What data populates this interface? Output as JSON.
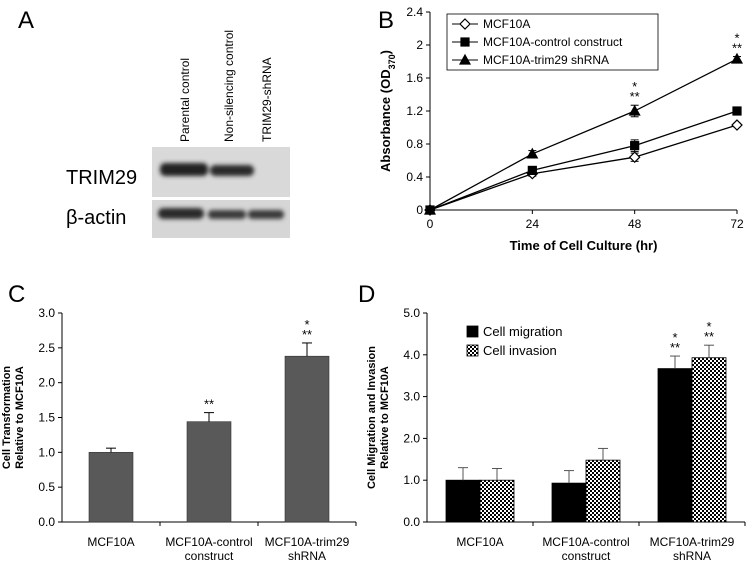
{
  "blot": {
    "panel": "A",
    "lanes": [
      "Parental control",
      "Non-silencing control",
      "TRIM29-shRNA"
    ],
    "rows": [
      "TRIM29",
      "β-actin"
    ]
  },
  "chart_data": [
    {
      "type": "line",
      "panel": "B",
      "x_label": "Time of Cell Culture (hr)",
      "y_label": "Absorbance (OD",
      "y_label_sub": "370",
      "y_label_end": ")",
      "x": [
        0,
        24,
        48,
        72
      ],
      "xlim": [
        0,
        72
      ],
      "xticks": [
        0,
        24,
        48,
        72
      ],
      "ylim": [
        0,
        2.4
      ],
      "yticks": [
        0,
        0.4,
        0.8,
        1.2,
        1.6,
        2,
        2.4
      ],
      "legend": "upper left",
      "series": [
        {
          "name": "MCF10A",
          "marker": "open-diamond",
          "color": "#000000",
          "values": [
            0,
            0.44,
            0.64,
            1.03
          ],
          "errors": [
            0.01,
            0.03,
            0.05,
            0.02
          ]
        },
        {
          "name": "MCF10A-control construct",
          "marker": "square",
          "color": "#000000",
          "values": [
            0,
            0.48,
            0.78,
            1.2
          ],
          "errors": [
            0.01,
            0.03,
            0.07,
            0.03
          ]
        },
        {
          "name": "MCF10A-trim29 shRNA",
          "marker": "triangle",
          "color": "#000000",
          "values": [
            0,
            0.68,
            1.2,
            1.83
          ],
          "errors": [
            0.01,
            0.04,
            0.07,
            0.03
          ],
          "significance": [
            [],
            [],
            [
              "*",
              "**"
            ],
            [
              "*",
              "**"
            ]
          ]
        }
      ]
    },
    {
      "type": "bar",
      "panel": "C",
      "y_label": [
        "Cell Transformation",
        "Relative to MCF10A"
      ],
      "categories": [
        [
          "MCF10A"
        ],
        [
          "MCF10A-control",
          "construct"
        ],
        [
          "MCF10A-trim29",
          "shRNA"
        ]
      ],
      "values": [
        1.0,
        1.44,
        2.38
      ],
      "errors": [
        0.06,
        0.13,
        0.19
      ],
      "color": "#595959",
      "significance": [
        [],
        [
          "**"
        ],
        [
          "*",
          "**"
        ]
      ],
      "ylim": [
        0,
        3
      ],
      "yticks": [
        {
          "value": 0,
          "label": "0.0"
        },
        0.5,
        {
          "value": 1,
          "label": "1.0"
        },
        1.5,
        {
          "value": 2,
          "label": "2.0"
        },
        2.5,
        {
          "value": 3,
          "label": "3.0"
        }
      ]
    },
    {
      "type": "grouped-bar",
      "panel": "D",
      "y_label": [
        "Cell Migration and Invasion",
        "Relative to MCF10A"
      ],
      "categories": [
        [
          "MCF10A"
        ],
        [
          "MCF10A-control",
          "construct"
        ],
        [
          "MCF10A-trim29",
          "shRNA"
        ]
      ],
      "legend": "upper left",
      "series": [
        {
          "name": "Cell migration",
          "color": "#000000",
          "pattern": "solid",
          "values": [
            1.0,
            0.93,
            3.67
          ],
          "errors": [
            0.3,
            0.3,
            0.3
          ],
          "significance": [
            [],
            [],
            [
              "*",
              "**"
            ]
          ]
        },
        {
          "name": "Cell invasion",
          "color": "#000000",
          "pattern": "checker",
          "values": [
            1.0,
            1.48,
            3.93
          ],
          "errors": [
            0.28,
            0.28,
            0.3
          ],
          "significance": [
            [],
            [],
            [
              "*",
              "**"
            ]
          ]
        }
      ],
      "ylim": [
        0,
        5
      ],
      "yticks": [
        {
          "value": 0,
          "label": "0.0"
        },
        {
          "value": 1,
          "label": "1.0"
        },
        {
          "value": 2,
          "label": "2.0"
        },
        {
          "value": 3,
          "label": "3.0"
        },
        {
          "value": 4,
          "label": "4.0"
        },
        {
          "value": 5,
          "label": "5.0"
        }
      ]
    }
  ]
}
